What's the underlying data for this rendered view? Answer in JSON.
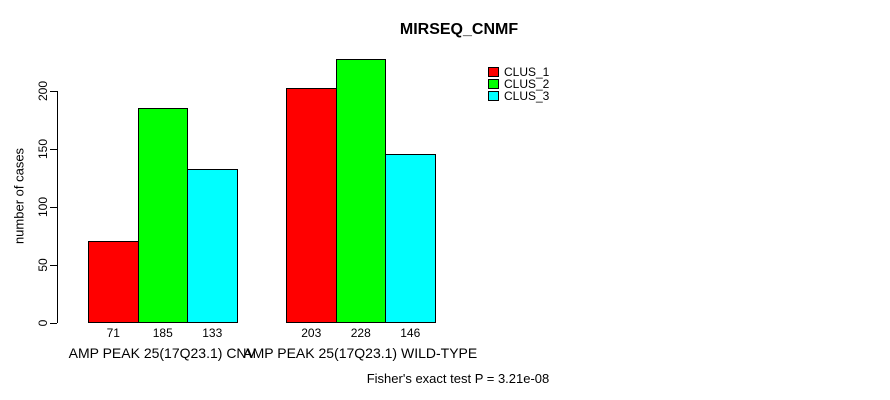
{
  "title": "MIRSEQ_CNMF",
  "footnote": "Fisher's exact test P = 3.21e-08",
  "chart_data": {
    "type": "bar",
    "title": "MIRSEQ_CNMF",
    "xlabel": "",
    "ylabel": "number of cases",
    "ylim": [
      0,
      230
    ],
    "yticks": [
      0,
      50,
      100,
      150,
      200
    ],
    "grid": false,
    "legend_position": "top-right",
    "bar_value_labels": true,
    "categories": [
      "AMP PEAK 25(17Q23.1) CNV",
      "AMP PEAK 25(17Q23.1) WILD-TYPE"
    ],
    "series": [
      {
        "name": "CLUS_1",
        "color": "#ff0000",
        "values": [
          71,
          203
        ]
      },
      {
        "name": "CLUS_2",
        "color": "#00ff00",
        "values": [
          185,
          228
        ]
      },
      {
        "name": "CLUS_3",
        "color": "#00ffff",
        "values": [
          133,
          146
        ]
      }
    ],
    "annotation": "Fisher's exact test P = 3.21e-08"
  },
  "colors": {
    "background": "#ffffff",
    "axis": "#000000",
    "bar_border": "#000000"
  }
}
